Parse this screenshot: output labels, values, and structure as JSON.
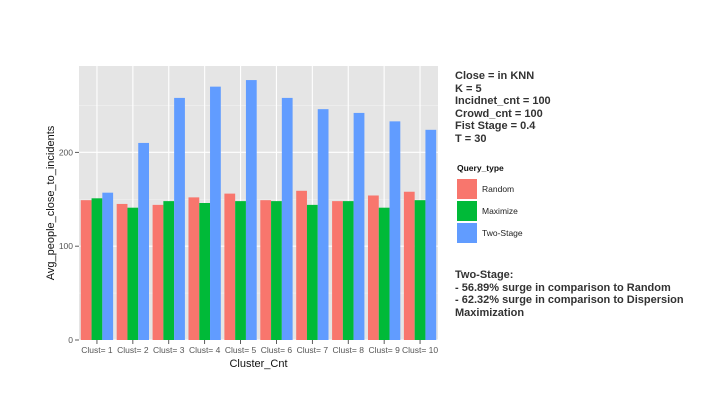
{
  "info": {
    "lines": [
      "Close =  in KNN",
      "K = 5",
      "Incidnet_cnt = 100",
      "Crowd_cnt = 100",
      "Fist Stage = 0.4",
      "T = 30"
    ]
  },
  "note": {
    "title": "Two-Stage:",
    "lines": [
      "-     56.89% surge in comparison to Random",
      "-     62.32% surge in comparison to Dispersion",
      " Maximization"
    ]
  },
  "chart_data": {
    "type": "bar",
    "title": "",
    "xlabel": "Cluster_Cnt",
    "ylabel": "Avg_people_close_to_incidents",
    "categories": [
      "Clust= 1",
      "Clust= 2",
      "Clust= 3",
      "Clust= 4",
      "Clust= 5",
      "Clust= 6",
      "Clust= 7",
      "Clust= 8",
      "Clust= 9",
      "Clust= 10"
    ],
    "yticks": [
      0,
      100,
      200
    ],
    "ylim": [
      0,
      292
    ],
    "grid": true,
    "legend": {
      "title": "Query_type",
      "position": "right"
    },
    "series": [
      {
        "name": "Random",
        "color": "#F8766D",
        "values": [
          149,
          145,
          144,
          152,
          156,
          149,
          159,
          148,
          154,
          158
        ]
      },
      {
        "name": "Maximize",
        "color": "#00BA38",
        "values": [
          151,
          141,
          148,
          146,
          148,
          148,
          144,
          148,
          141,
          149
        ]
      },
      {
        "name": "Two-Stage",
        "color": "#619CFF",
        "values": [
          157,
          210,
          258,
          270,
          277,
          258,
          246,
          242,
          233,
          224
        ]
      }
    ],
    "panel_background": "#E5E5E5",
    "grid_color": "#FFFFFF"
  }
}
